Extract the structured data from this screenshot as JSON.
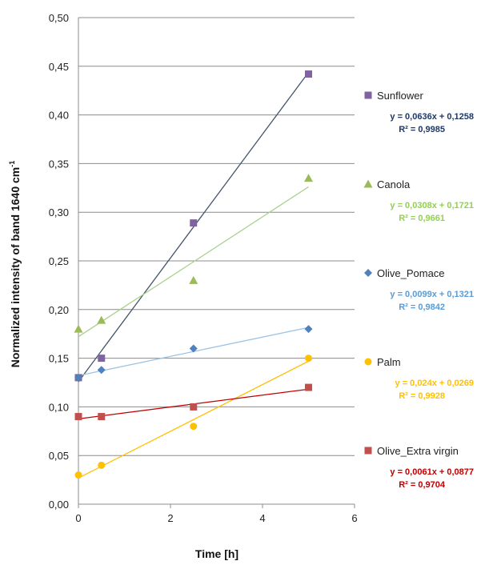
{
  "chart_data": {
    "type": "scatter",
    "title": "",
    "xlabel": "Time [h]",
    "ylabel": "Normalized intensity of  band  1640 cm",
    "ylabel_sup": "-1",
    "xlim": [
      0,
      6
    ],
    "ylim": [
      0,
      0.5
    ],
    "x_ticks": [
      0,
      2,
      4,
      6
    ],
    "x_tick_labels": [
      "0",
      "2",
      "4",
      "6"
    ],
    "y_ticks": [
      0,
      0.05,
      0.1,
      0.15,
      0.2,
      0.25,
      0.3,
      0.35,
      0.4,
      0.45,
      0.5
    ],
    "y_tick_labels": [
      "0,00",
      "0,05",
      "0,10",
      "0,15",
      "0,20",
      "0,25",
      "0,30",
      "0,35",
      "0,40",
      "0,45",
      "0,50"
    ],
    "grid": "horizontal",
    "legend_position": "right",
    "series": [
      {
        "name": "Sunflower",
        "marker": "square",
        "color": "#8064A2",
        "line_color": "#44546A",
        "eq_color": "#1F3864",
        "x": [
          0,
          0.5,
          2.5,
          5
        ],
        "y": [
          0.13,
          0.15,
          0.289,
          0.442
        ],
        "trend": [
          0.0636,
          0.1258
        ],
        "equation": "y = 0,0636x + 0,1258",
        "r2": "R² = 0,9985"
      },
      {
        "name": "Canola",
        "marker": "triangle",
        "color": "#9BBB59",
        "line_color": "#A9D18E",
        "eq_color": "#92D050",
        "x": [
          0,
          0.5,
          2.5,
          5
        ],
        "y": [
          0.18,
          0.189,
          0.23,
          0.335
        ],
        "trend": [
          0.0308,
          0.1721
        ],
        "equation": "y = 0,0308x + 0,1721",
        "r2": "R² = 0,9661"
      },
      {
        "name": "Olive_Pomace",
        "marker": "diamond",
        "color": "#4F81BD",
        "line_color": "#9DC3E6",
        "eq_color": "#5B9BD5",
        "x": [
          0,
          0.5,
          2.5,
          5
        ],
        "y": [
          0.13,
          0.138,
          0.16,
          0.18
        ],
        "trend": [
          0.0099,
          0.1321
        ],
        "equation": "y = 0,0099x + 0,1321",
        "r2": "R² = 0,9842"
      },
      {
        "name": "Palm",
        "marker": "circle",
        "color": "#FFC000",
        "line_color": "#FFC000",
        "eq_color": "#FFC000",
        "x": [
          0,
          0.5,
          2.5,
          5
        ],
        "y": [
          0.03,
          0.04,
          0.08,
          0.15
        ],
        "trend": [
          0.024,
          0.0269
        ],
        "equation": "y = 0,024x + 0,0269",
        "r2": "R² = 0,9928"
      },
      {
        "name": "Olive_Extra virgin",
        "marker": "square",
        "color": "#C0504D",
        "line_color": "#C00000",
        "eq_color": "#C00000",
        "x": [
          0,
          0.5,
          2.5,
          5
        ],
        "y": [
          0.09,
          0.09,
          0.1,
          0.12
        ],
        "trend": [
          0.0061,
          0.0877
        ],
        "equation": "y = 0,0061x + 0,0877",
        "r2": "R² = 0,9704"
      }
    ]
  }
}
